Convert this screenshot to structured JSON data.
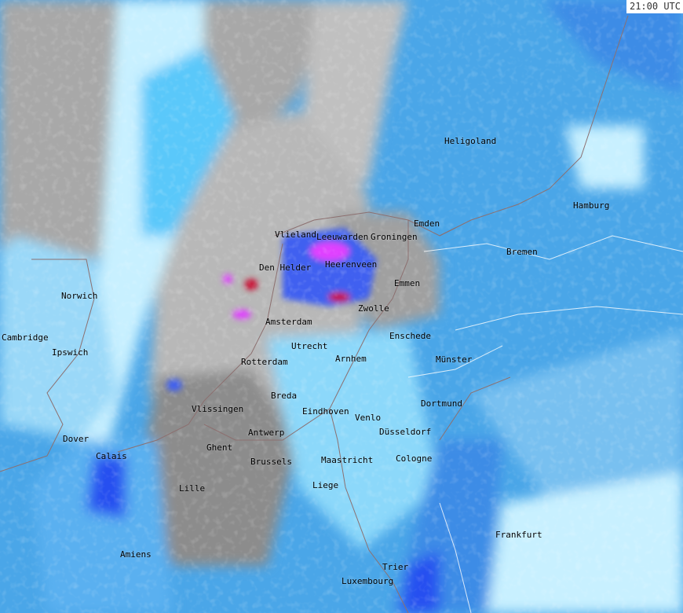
{
  "timestamp": "21:00 UTC",
  "colors": {
    "land_gray": "#a8a8a8",
    "light_cyan": "#c8f0ff",
    "cyan": "#5ac8fa",
    "blue": "#3c8ce6",
    "deep_blue": "#2850f0",
    "magenta": "#ff28ff",
    "red": "#c80028",
    "border": "#8c7070"
  },
  "cities": [
    {
      "name": "Heligoland"
    },
    {
      "name": "Hamburg"
    },
    {
      "name": "Emden"
    },
    {
      "name": "Groningen"
    },
    {
      "name": "Leeuwarden"
    },
    {
      "name": "Vlieland"
    },
    {
      "name": "Bremen"
    },
    {
      "name": "Heerenveen"
    },
    {
      "name": "Den Helder"
    },
    {
      "name": "Emmen"
    },
    {
      "name": "Norwich"
    },
    {
      "name": "Zwolle"
    },
    {
      "name": "Amsterdam"
    },
    {
      "name": "Enschede"
    },
    {
      "name": "Cambridge"
    },
    {
      "name": "Utrecht"
    },
    {
      "name": "Ipswich"
    },
    {
      "name": "Arnhem"
    },
    {
      "name": "Münster"
    },
    {
      "name": "Rotterdam"
    },
    {
      "name": "Breda"
    },
    {
      "name": "Dortmund"
    },
    {
      "name": "Vlissingen"
    },
    {
      "name": "Eindhoven"
    },
    {
      "name": "Venlo"
    },
    {
      "name": "Düsseldorf"
    },
    {
      "name": "Antwerp"
    },
    {
      "name": "Dover"
    },
    {
      "name": "Ghent"
    },
    {
      "name": "Calais"
    },
    {
      "name": "Cologne"
    },
    {
      "name": "Brussels"
    },
    {
      "name": "Maastricht"
    },
    {
      "name": "Lille"
    },
    {
      "name": "Liege"
    },
    {
      "name": "Frankfurt"
    },
    {
      "name": "Amiens"
    },
    {
      "name": "Trier"
    },
    {
      "name": "Luxembourg"
    }
  ]
}
